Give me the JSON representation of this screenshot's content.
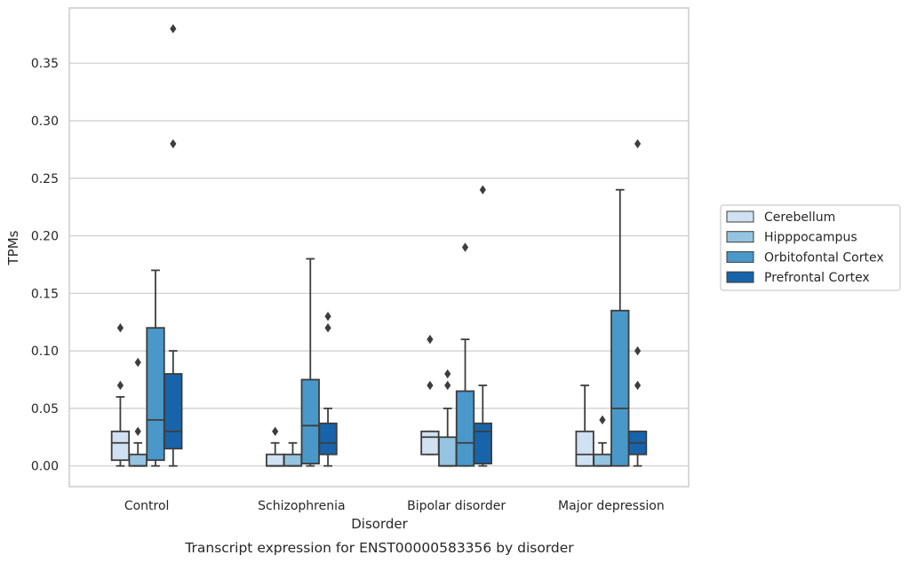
{
  "caption": "Transcript expression for ENST00000583356 by disorder",
  "chart_data": {
    "type": "box",
    "title": "",
    "xlabel": "Disorder",
    "ylabel": "TPMs",
    "ylim": [
      -0.018,
      0.398
    ],
    "yticks": [
      0.0,
      0.05,
      0.1,
      0.15,
      0.2,
      0.25,
      0.3,
      0.35
    ],
    "ytick_labels": [
      "0.00",
      "0.05",
      "0.10",
      "0.15",
      "0.20",
      "0.25",
      "0.30",
      "0.35"
    ],
    "grid": "horizontal",
    "legend_position": "right",
    "categories": [
      "Control",
      "Schizophrenia",
      "Bipolar disorder",
      "Major depression"
    ],
    "series": [
      {
        "name": "Cerebellum",
        "color": "#d0e1f2",
        "boxes": [
          {
            "whisker_low": 0.0,
            "q1": 0.005,
            "median": 0.02,
            "q3": 0.03,
            "whisker_high": 0.06,
            "outliers": [
              0.07,
              0.12
            ]
          },
          {
            "whisker_low": 0.0,
            "q1": 0.0,
            "median": 0.0,
            "q3": 0.01,
            "whisker_high": 0.02,
            "outliers": [
              0.03
            ]
          },
          {
            "whisker_low": 0.01,
            "q1": 0.01,
            "median": 0.025,
            "q3": 0.03,
            "whisker_high": 0.03,
            "outliers": [
              0.07,
              0.11
            ]
          },
          {
            "whisker_low": 0.0,
            "q1": 0.0,
            "median": 0.01,
            "q3": 0.03,
            "whisker_high": 0.07,
            "outliers": []
          }
        ]
      },
      {
        "name": "Hipppocampus",
        "color": "#94c4df",
        "boxes": [
          {
            "whisker_low": 0.0,
            "q1": 0.0,
            "median": 0.0,
            "q3": 0.01,
            "whisker_high": 0.02,
            "outliers": [
              0.03,
              0.09
            ]
          },
          {
            "whisker_low": 0.0,
            "q1": 0.0,
            "median": 0.0,
            "q3": 0.01,
            "whisker_high": 0.02,
            "outliers": []
          },
          {
            "whisker_low": 0.0,
            "q1": 0.0,
            "median": 0.0,
            "q3": 0.025,
            "whisker_high": 0.05,
            "outliers": [
              0.07,
              0.08
            ]
          },
          {
            "whisker_low": 0.0,
            "q1": 0.0,
            "median": 0.0,
            "q3": 0.01,
            "whisker_high": 0.02,
            "outliers": [
              0.04
            ]
          }
        ]
      },
      {
        "name": "Orbitofontal Cortex",
        "color": "#4a98c9",
        "boxes": [
          {
            "whisker_low": 0.0,
            "q1": 0.005,
            "median": 0.04,
            "q3": 0.12,
            "whisker_high": 0.17,
            "outliers": []
          },
          {
            "whisker_low": 0.0,
            "q1": 0.002,
            "median": 0.035,
            "q3": 0.075,
            "whisker_high": 0.18,
            "outliers": []
          },
          {
            "whisker_low": 0.0,
            "q1": 0.0,
            "median": 0.02,
            "q3": 0.065,
            "whisker_high": 0.11,
            "outliers": [
              0.19
            ]
          },
          {
            "whisker_low": 0.0,
            "q1": 0.0,
            "median": 0.05,
            "q3": 0.135,
            "whisker_high": 0.24,
            "outliers": []
          }
        ]
      },
      {
        "name": "Prefrontal Cortex",
        "color": "#1764ab",
        "boxes": [
          {
            "whisker_low": 0.0,
            "q1": 0.015,
            "median": 0.03,
            "q3": 0.08,
            "whisker_high": 0.1,
            "outliers": [
              0.28,
              0.38
            ]
          },
          {
            "whisker_low": 0.0,
            "q1": 0.01,
            "median": 0.02,
            "q3": 0.037,
            "whisker_high": 0.05,
            "outliers": [
              0.12,
              0.13
            ]
          },
          {
            "whisker_low": 0.0,
            "q1": 0.002,
            "median": 0.03,
            "q3": 0.037,
            "whisker_high": 0.07,
            "outliers": [
              0.24
            ]
          },
          {
            "whisker_low": 0.0,
            "q1": 0.01,
            "median": 0.02,
            "q3": 0.03,
            "whisker_high": 0.03,
            "outliers": [
              0.07,
              0.1,
              0.28
            ]
          }
        ]
      }
    ],
    "line_color": "#3d3d3d",
    "grid_color": "#cccccc",
    "frame_color": "#cccccc"
  }
}
